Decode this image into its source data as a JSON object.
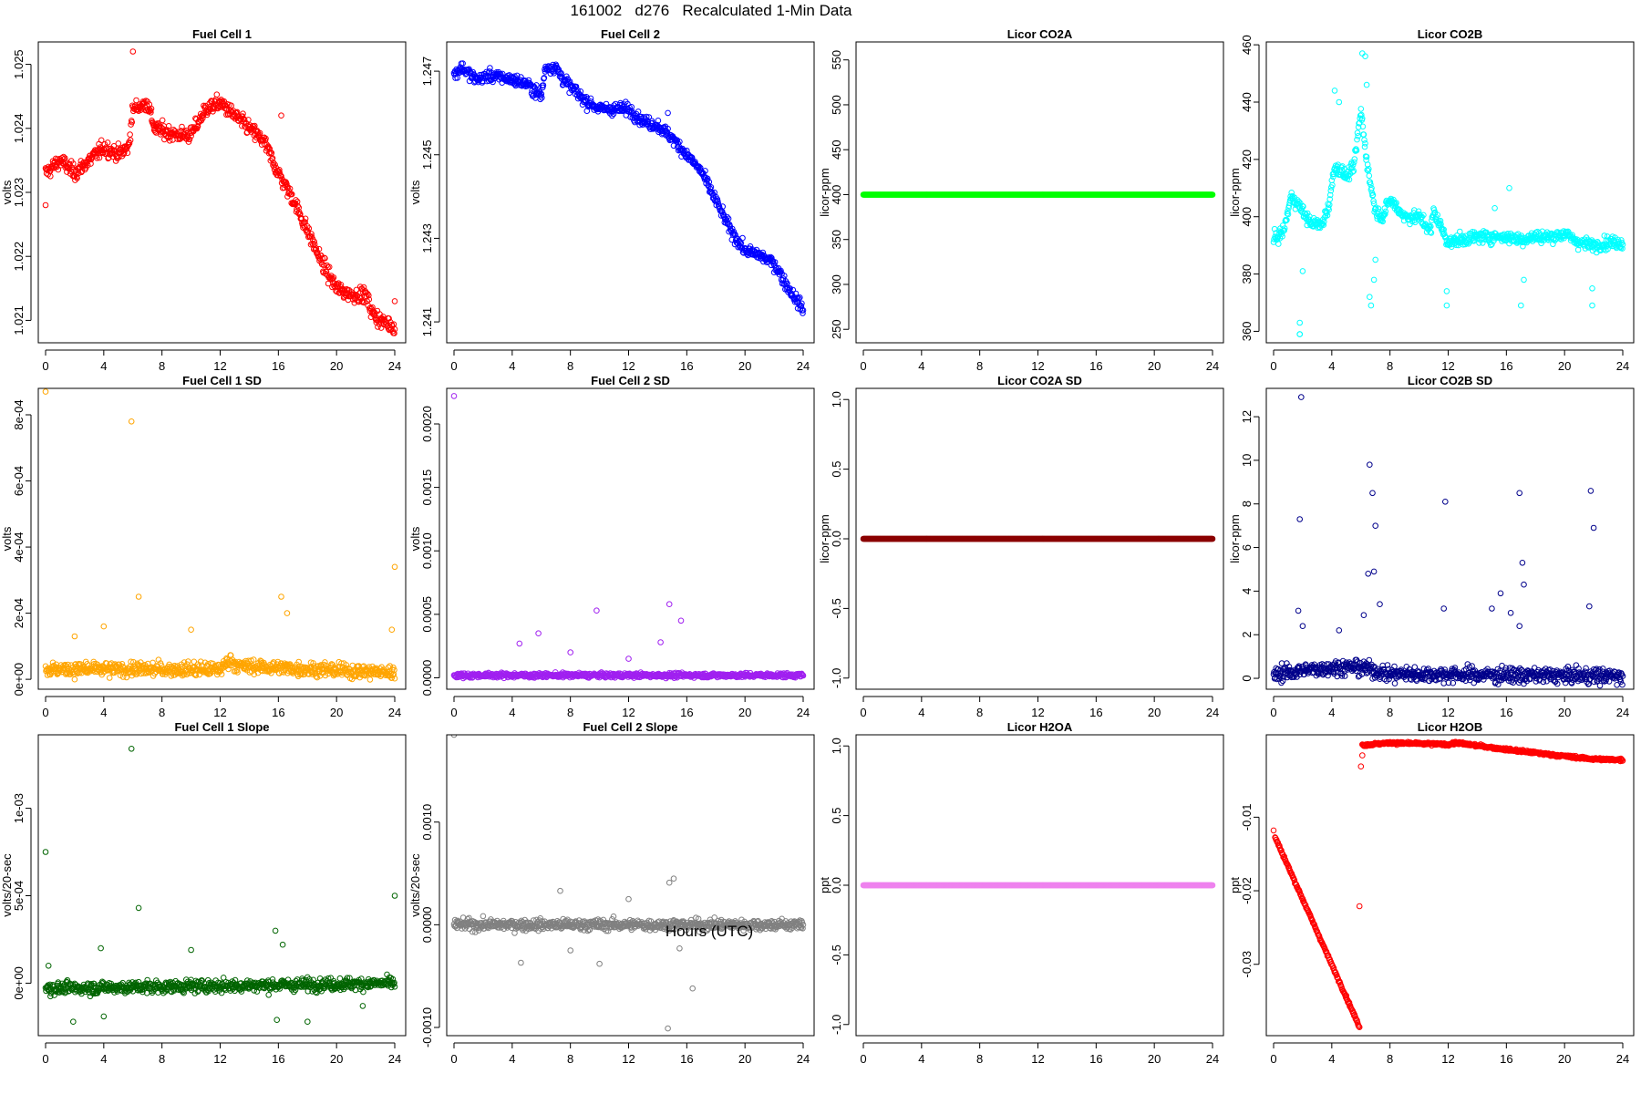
{
  "page": {
    "title": "161002   d276   Recalculated 1-Min Data",
    "xlabel": "Hours (UTC)"
  },
  "chart_data": [
    {
      "id": "fc1",
      "type": "scatter",
      "title": "Fuel Cell 1",
      "ylabel": "volts",
      "color": "#ff0000",
      "xlim": [
        0,
        24
      ],
      "ylim": [
        1.02065,
        1.02535
      ],
      "xticks": [
        0,
        4,
        8,
        12,
        16,
        20,
        24
      ],
      "yticks": [
        1.021,
        1.022,
        1.023,
        1.024,
        1.025
      ],
      "yticklabels": [
        "1.021",
        "1.022",
        "1.023",
        "1.024",
        "1.025"
      ],
      "profile": [
        [
          0,
          1.0233
        ],
        [
          1,
          1.0235
        ],
        [
          2,
          1.0233
        ],
        [
          3,
          1.0235
        ],
        [
          4,
          1.0237
        ],
        [
          5,
          1.0236
        ],
        [
          5.7,
          1.0237
        ],
        [
          6,
          1.0243
        ],
        [
          7,
          1.0244
        ],
        [
          7.5,
          1.024
        ],
        [
          9,
          1.0239
        ],
        [
          10,
          1.0239
        ],
        [
          11,
          1.0243
        ],
        [
          12,
          1.0244
        ],
        [
          13,
          1.0242
        ],
        [
          14,
          1.024
        ],
        [
          15,
          1.0238
        ],
        [
          16,
          1.0233
        ],
        [
          17,
          1.0229
        ],
        [
          18,
          1.0224
        ],
        [
          19,
          1.0219
        ],
        [
          20,
          1.0215
        ],
        [
          21,
          1.0214
        ],
        [
          22,
          1.0214
        ],
        [
          22.5,
          1.0211
        ],
        [
          23,
          1.021
        ],
        [
          24,
          1.0209
        ]
      ],
      "noise": 0.0001,
      "outliers": [
        [
          0,
          1.0228
        ],
        [
          6,
          1.0252
        ],
        [
          16.2,
          1.0242
        ],
        [
          24,
          1.0213
        ]
      ]
    },
    {
      "id": "fc2",
      "type": "scatter",
      "title": "Fuel Cell 2",
      "ylabel": "volts",
      "color": "#0000ff",
      "xlim": [
        0,
        24
      ],
      "ylim": [
        1.2405,
        1.2477
      ],
      "xticks": [
        0,
        4,
        8,
        12,
        16,
        20,
        24
      ],
      "yticks": [
        1.241,
        1.243,
        1.245,
        1.247
      ],
      "yticklabels": [
        "1.241",
        "1.243",
        "1.245",
        "1.247"
      ],
      "profile": [
        [
          0,
          1.2469
        ],
        [
          0.5,
          1.2471
        ],
        [
          1.5,
          1.2468
        ],
        [
          2.5,
          1.2469
        ],
        [
          4,
          1.2468
        ],
        [
          5,
          1.2467
        ],
        [
          6,
          1.2464
        ],
        [
          6.3,
          1.2471
        ],
        [
          7,
          1.2471
        ],
        [
          7.5,
          1.2468
        ],
        [
          9,
          1.2463
        ],
        [
          10,
          1.2461
        ],
        [
          12,
          1.2461
        ],
        [
          13,
          1.2458
        ],
        [
          14,
          1.2457
        ],
        [
          15,
          1.2454
        ],
        [
          16,
          1.245
        ],
        [
          17,
          1.2446
        ],
        [
          18,
          1.2439
        ],
        [
          19,
          1.2432
        ],
        [
          20,
          1.2427
        ],
        [
          21,
          1.2426
        ],
        [
          22,
          1.2424
        ],
        [
          23,
          1.2418
        ],
        [
          24,
          1.2413
        ]
      ],
      "noise": 0.00012,
      "outliers": [
        [
          14.7,
          1.246
        ]
      ]
    },
    {
      "id": "co2a",
      "type": "scatter",
      "title": "Licor CO2A",
      "ylabel": "licor-ppm",
      "color": "#00ff00",
      "xlim": [
        0,
        24
      ],
      "ylim": [
        235,
        570
      ],
      "xticks": [
        0,
        4,
        8,
        12,
        16,
        20,
        24
      ],
      "yticks": [
        250,
        300,
        350,
        400,
        450,
        500,
        550
      ],
      "yticklabels": [
        "250",
        "300",
        "350",
        "400",
        "450",
        "500",
        "550"
      ],
      "profile": [
        [
          0,
          400
        ],
        [
          24,
          400
        ]
      ],
      "noise": 0,
      "outliers": []
    },
    {
      "id": "co2b",
      "type": "scatter",
      "title": "Licor CO2B",
      "ylabel": "licor-ppm",
      "color": "#00ffff",
      "xlim": [
        0,
        24
      ],
      "ylim": [
        356,
        461
      ],
      "xticks": [
        0,
        4,
        8,
        12,
        16,
        20,
        24
      ],
      "yticks": [
        360,
        380,
        400,
        420,
        440,
        460
      ],
      "yticklabels": [
        "360",
        "380",
        "400",
        "420",
        "440",
        "460"
      ],
      "profile": [
        [
          0,
          392
        ],
        [
          0.7,
          395
        ],
        [
          1.2,
          407
        ],
        [
          1.6,
          405
        ],
        [
          2.5,
          398
        ],
        [
          3.3,
          397
        ],
        [
          3.8,
          404
        ],
        [
          4.2,
          418
        ],
        [
          5,
          414
        ],
        [
          5.5,
          417
        ],
        [
          6,
          437
        ],
        [
          6.5,
          416
        ],
        [
          7,
          402
        ],
        [
          7.5,
          400
        ],
        [
          8,
          406
        ],
        [
          9,
          400
        ],
        [
          10,
          400
        ],
        [
          10.8,
          395
        ],
        [
          11,
          402
        ],
        [
          12,
          391
        ],
        [
          13,
          392
        ],
        [
          14,
          393
        ],
        [
          15,
          393
        ],
        [
          16,
          393
        ],
        [
          17,
          392
        ],
        [
          18,
          393
        ],
        [
          19,
          393
        ],
        [
          20,
          394
        ],
        [
          21,
          391
        ],
        [
          22,
          390
        ],
        [
          23,
          391
        ],
        [
          24,
          391
        ]
      ],
      "noise": 1.8,
      "outliers": [
        [
          1.8,
          363
        ],
        [
          1.8,
          359
        ],
        [
          1.8,
          359
        ],
        [
          2,
          381
        ],
        [
          4.2,
          444
        ],
        [
          4.5,
          440
        ],
        [
          6.1,
          457
        ],
        [
          6.3,
          456
        ],
        [
          6.4,
          446
        ],
        [
          6.6,
          372
        ],
        [
          6.7,
          369
        ],
        [
          6.9,
          378
        ],
        [
          7,
          385
        ],
        [
          11.9,
          374
        ],
        [
          11.9,
          369
        ],
        [
          15.2,
          403
        ],
        [
          16.2,
          410
        ],
        [
          17,
          369
        ],
        [
          17.2,
          378
        ],
        [
          21.9,
          375
        ],
        [
          21.9,
          369
        ]
      ]
    },
    {
      "id": "fc1sd",
      "type": "scatter",
      "title": "Fuel Cell 1 SD",
      "ylabel": "volts",
      "color": "#ffa500",
      "xlim": [
        0,
        24
      ],
      "ylim": [
        -3e-05,
        0.00088
      ],
      "xticks": [
        0,
        4,
        8,
        12,
        16,
        20,
        24
      ],
      "yticks": [
        0,
        0.0002,
        0.0004,
        0.0006,
        0.0008
      ],
      "yticklabels": [
        "0e+00",
        "2e-04",
        "4e-04",
        "6e-04",
        "8e-04"
      ],
      "profile": [
        [
          0,
          3e-05
        ],
        [
          12,
          3e-05
        ],
        [
          12.7,
          6e-05
        ],
        [
          13.2,
          4e-05
        ],
        [
          24,
          2e-05
        ]
      ],
      "noise": 1.8e-05,
      "outliers": [
        [
          0,
          0.00087
        ],
        [
          5.9,
          0.00078
        ],
        [
          6.4,
          0.00025
        ],
        [
          16.2,
          0.00025
        ],
        [
          16.6,
          0.0002
        ],
        [
          24,
          0.00034
        ],
        [
          23.8,
          0.00015
        ],
        [
          4,
          0.00016
        ],
        [
          10,
          0.00015
        ],
        [
          2,
          0.00013
        ]
      ]
    },
    {
      "id": "fc2sd",
      "type": "scatter",
      "title": "Fuel Cell 2 SD",
      "ylabel": "volts",
      "color": "#a020f0",
      "xlim": [
        0,
        24
      ],
      "ylim": [
        -9e-05,
        0.00228
      ],
      "xticks": [
        0,
        4,
        8,
        12,
        16,
        20,
        24
      ],
      "yticks": [
        0,
        0.0005,
        0.001,
        0.0015,
        0.002
      ],
      "yticklabels": [
        "0.0000",
        "0.0005",
        "0.0010",
        "0.0015",
        "0.0020"
      ],
      "profile": [
        [
          0,
          2e-05
        ],
        [
          24,
          2e-05
        ]
      ],
      "noise": 1.5e-05,
      "outliers": [
        [
          0,
          0.00222
        ],
        [
          14.8,
          0.00058
        ],
        [
          9.8,
          0.00053
        ],
        [
          15.6,
          0.00045
        ],
        [
          5.8,
          0.00035
        ],
        [
          4.5,
          0.00027
        ],
        [
          14.2,
          0.00028
        ],
        [
          8,
          0.0002
        ],
        [
          12,
          0.00015
        ]
      ]
    },
    {
      "id": "co2asd",
      "type": "scatter",
      "title": "Licor CO2A SD",
      "ylabel": "licor-ppm",
      "color": "#8b0000",
      "xlim": [
        0,
        24
      ],
      "ylim": [
        -1.08,
        1.08
      ],
      "xticks": [
        0,
        4,
        8,
        12,
        16,
        20,
        24
      ],
      "yticks": [
        -1,
        -0.5,
        0,
        0.5,
        1
      ],
      "yticklabels": [
        "-1.0",
        "-0.5",
        "0.0",
        "0.5",
        "1.0"
      ],
      "profile": [
        [
          0,
          0
        ],
        [
          24,
          0
        ]
      ],
      "noise": 0,
      "outliers": []
    },
    {
      "id": "co2bsd",
      "type": "scatter",
      "title": "Licor CO2B SD",
      "ylabel": "licor-ppm",
      "color": "#00008b",
      "xlim": [
        0,
        24
      ],
      "ylim": [
        -0.5,
        13.3
      ],
      "xticks": [
        0,
        4,
        8,
        12,
        16,
        20,
        24
      ],
      "yticks": [
        0,
        2,
        4,
        6,
        8,
        10,
        12
      ],
      "yticklabels": [
        "0",
        "2",
        "4",
        "6",
        "8",
        "10",
        "12"
      ],
      "profile": [
        [
          0,
          0.2
        ],
        [
          4,
          0.5
        ],
        [
          6,
          0.5
        ],
        [
          8,
          0.2
        ],
        [
          24,
          0.1
        ]
      ],
      "noise": 0.3,
      "outliers": [
        [
          1.9,
          12.9
        ],
        [
          6.6,
          9.8
        ],
        [
          6.8,
          8.5
        ],
        [
          7,
          7
        ],
        [
          1.8,
          7.3
        ],
        [
          11.8,
          8.1
        ],
        [
          16.9,
          8.5
        ],
        [
          21.8,
          8.6
        ],
        [
          22,
          6.9
        ],
        [
          17.1,
          5.3
        ],
        [
          17.2,
          4.3
        ],
        [
          6.5,
          4.8
        ],
        [
          6.9,
          4.9
        ],
        [
          7.3,
          3.4
        ],
        [
          1.7,
          3.1
        ],
        [
          11.7,
          3.2
        ],
        [
          21.7,
          3.3
        ],
        [
          15.6,
          3.9
        ],
        [
          15,
          3.2
        ],
        [
          16.3,
          3
        ],
        [
          16.9,
          2.4
        ],
        [
          4.5,
          2.2
        ],
        [
          6.2,
          2.9
        ],
        [
          2,
          2.4
        ]
      ]
    },
    {
      "id": "fc1slope",
      "type": "scatter",
      "title": "Fuel Cell 1 Slope",
      "ylabel": "volts/20-sec",
      "color": "#006400",
      "xlim": [
        0,
        24
      ],
      "ylim": [
        -0.0003,
        0.00142
      ],
      "xticks": [
        0,
        4,
        8,
        12,
        16,
        20,
        24
      ],
      "yticks": [
        0,
        0.0005,
        0.001
      ],
      "yticklabels": [
        "0e+00",
        "5e-04",
        "1e-03"
      ],
      "profile": [
        [
          0,
          -3e-05
        ],
        [
          24,
          0
        ]
      ],
      "noise": 3e-05,
      "outliers": [
        [
          5.9,
          0.00134
        ],
        [
          0,
          0.00075
        ],
        [
          6.4,
          0.00043
        ],
        [
          24,
          0.0005
        ],
        [
          15.8,
          0.0003
        ],
        [
          3.8,
          0.0002
        ],
        [
          10,
          0.00019
        ],
        [
          0.2,
          0.0001
        ],
        [
          16.3,
          0.00022
        ],
        [
          1.9,
          -0.00022
        ],
        [
          4,
          -0.00019
        ],
        [
          15.9,
          -0.00021
        ],
        [
          18,
          -0.00022
        ],
        [
          21.8,
          -0.00013
        ]
      ]
    },
    {
      "id": "fc2slope",
      "type": "scatter",
      "title": "Fuel Cell 2 Slope",
      "ylabel": "volts/20-sec",
      "color": "#808080",
      "xlim": [
        0,
        24
      ],
      "ylim": [
        -0.00108,
        0.00185
      ],
      "xticks": [
        0,
        4,
        8,
        12,
        16,
        20,
        24
      ],
      "yticks": [
        -0.001,
        0,
        0.001
      ],
      "yticklabels": [
        "-0.0010",
        "0.0000",
        "0.0010"
      ],
      "profile": [
        [
          0,
          0
        ],
        [
          24,
          0
        ]
      ],
      "noise": 4.5e-05,
      "outliers": [
        [
          0,
          0.00185
        ],
        [
          14.7,
          -0.00101
        ],
        [
          14.8,
          0.00041
        ],
        [
          15.1,
          0.00045
        ],
        [
          16.4,
          -0.00062
        ],
        [
          7.3,
          0.00033
        ],
        [
          4.6,
          -0.00037
        ],
        [
          10,
          -0.00038
        ],
        [
          8,
          -0.00025
        ],
        [
          12,
          0.00025
        ],
        [
          15.5,
          -0.00023
        ]
      ]
    },
    {
      "id": "h2oa",
      "type": "scatter",
      "title": "Licor H2OA",
      "ylabel": "ppt",
      "color": "#ee82ee",
      "xlim": [
        0,
        24
      ],
      "ylim": [
        -1.08,
        1.08
      ],
      "xticks": [
        0,
        4,
        8,
        12,
        16,
        20,
        24
      ],
      "yticks": [
        -1,
        -0.5,
        0,
        0.5,
        1
      ],
      "yticklabels": [
        "-1.0",
        "-0.5",
        "0.0",
        "0.5",
        "1.0"
      ],
      "profile": [
        [
          0,
          0
        ],
        [
          24,
          0
        ]
      ],
      "noise": 0,
      "outliers": []
    },
    {
      "id": "h2ob",
      "type": "scatter",
      "title": "Licor H2OB",
      "ylabel": "ppt",
      "color": "#ff0000",
      "xlim": [
        0,
        24
      ],
      "ylim": [
        -0.0397,
        0.0012
      ],
      "xticks": [
        0,
        4,
        8,
        12,
        16,
        20,
        24
      ],
      "yticks": [
        -0.03,
        -0.02,
        -0.01
      ],
      "yticklabels": [
        "-0.03",
        "-0.02",
        "-0.01"
      ],
      "segments": [
        [
          [
            0.1,
            -0.0127
          ],
          [
            5.9,
            -0.0385
          ]
        ],
        [
          [
            6.1,
            -0.0002
          ],
          [
            8,
            0.0001
          ],
          [
            12,
            -0.0001
          ],
          [
            12.6,
            0.0001
          ],
          [
            16,
            -0.0008
          ],
          [
            20,
            -0.0017
          ],
          [
            22,
            -0.0021
          ],
          [
            24,
            -0.0022
          ]
        ]
      ],
      "noise": 0.00015,
      "outliers": [
        [
          0,
          -0.0118
        ],
        [
          5.9,
          -0.0221
        ],
        [
          6,
          -0.0031
        ],
        [
          6.1,
          -0.0016
        ]
      ]
    }
  ]
}
